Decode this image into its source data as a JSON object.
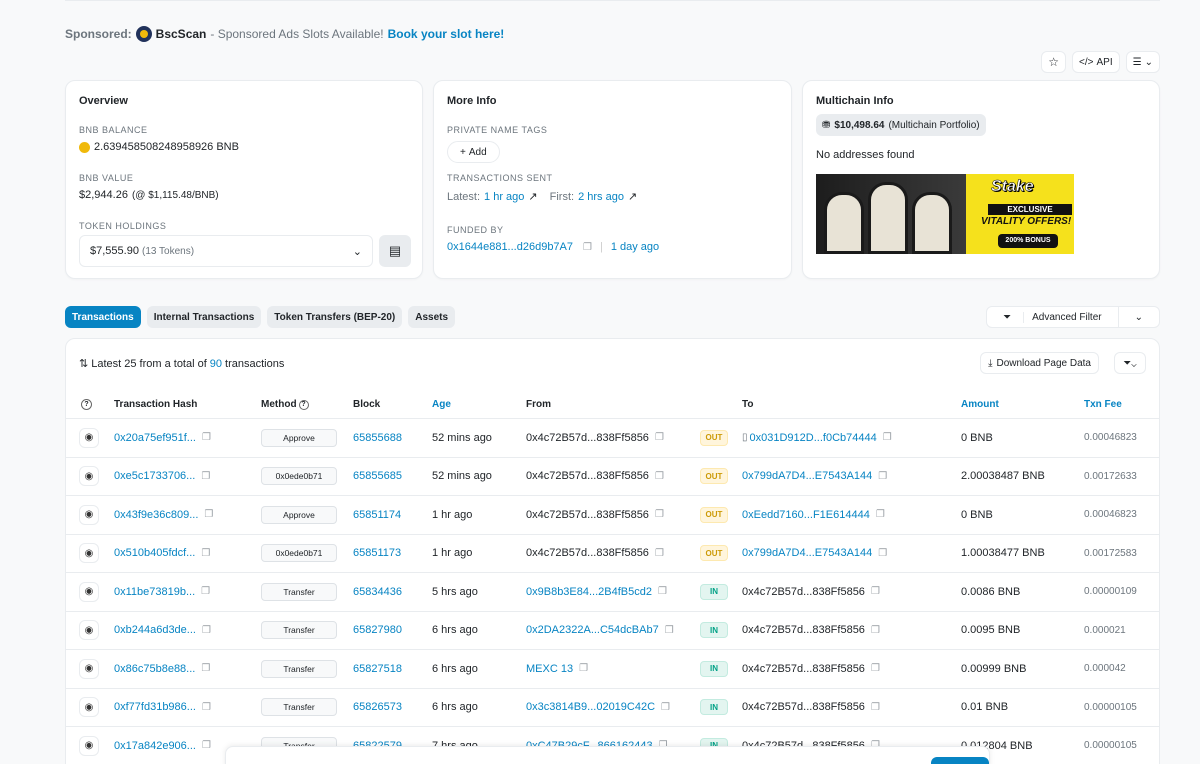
{
  "sponsor": {
    "prefix": "Sponsored:",
    "brand": "BscScan",
    "text": "- Sponsored Ads Slots Available!",
    "cta": "Book your slot here!"
  },
  "top_actions": {
    "api": "API"
  },
  "overview": {
    "title": "Overview",
    "balance_label": "BNB BALANCE",
    "balance": "2.639458508248958926 BNB",
    "value_label": "BNB VALUE",
    "value": "$2,944.26",
    "value_rate": "(@ $1,115.48/BNB)",
    "holdings_label": "TOKEN HOLDINGS",
    "holdings_value": "$7,555.90",
    "holdings_tokens": "(13 Tokens)"
  },
  "more_info": {
    "title": "More Info",
    "tags_label": "PRIVATE NAME TAGS",
    "add": "Add",
    "sent_label": "TRANSACTIONS SENT",
    "latest_label": "Latest:",
    "latest": "1 hr ago",
    "first_label": "First:",
    "first": "2 hrs ago",
    "funded_label": "FUNDED BY",
    "funded_addr": "0x1644e881...d26d9b7A7",
    "funded_age": "1 day ago"
  },
  "multichain": {
    "title": "Multichain Info",
    "portfolio_value": "$10,498.64",
    "portfolio_label": "(Multichain Portfolio)",
    "no_addresses": "No addresses found",
    "ad": {
      "logo": "Stake",
      "line1": "EXCLUSIVE",
      "line2": "VITALITY OFFERS!",
      "line3": "200% BONUS"
    }
  },
  "tabs": [
    "Transactions",
    "Internal Transactions",
    "Token Transfers (BEP-20)",
    "Assets"
  ],
  "advanced_filter": "Advanced Filter",
  "summary": {
    "prefix": "Latest 25 from a total of",
    "total": "90",
    "suffix": "transactions"
  },
  "download": "Download Page Data",
  "columns": {
    "hash": "Transaction Hash",
    "method": "Method",
    "block": "Block",
    "age": "Age",
    "from": "From",
    "to": "To",
    "amount": "Amount",
    "fee": "Txn Fee"
  },
  "rows": [
    {
      "hash": "0x20a75ef951f...",
      "method": "Approve",
      "block": "65855688",
      "age": "52 mins ago",
      "from": "0x4c72B57d...838Ff5856",
      "dir": "OUT",
      "to": "0x031D912D...f0Cb74444",
      "amount": "0 BNB",
      "fee": "0.00046823"
    },
    {
      "hash": "0xe5c1733706...",
      "method": "0x0ede0b71",
      "block": "65855685",
      "age": "52 mins ago",
      "from": "0x4c72B57d...838Ff5856",
      "dir": "OUT",
      "to": "0x799dA7D4...E7543A144",
      "amount": "2.00038487 BNB",
      "fee": "0.00172633"
    },
    {
      "hash": "0x43f9e36c809...",
      "method": "Approve",
      "block": "65851174",
      "age": "1 hr ago",
      "from": "0x4c72B57d...838Ff5856",
      "dir": "OUT",
      "to": "0xEedd7160...F1E614444",
      "amount": "0 BNB",
      "fee": "0.00046823"
    },
    {
      "hash": "0x510b405fdcf...",
      "method": "0x0ede0b71",
      "block": "65851173",
      "age": "1 hr ago",
      "from": "0x4c72B57d...838Ff5856",
      "dir": "OUT",
      "to": "0x799dA7D4...E7543A144",
      "amount": "1.00038477 BNB",
      "fee": "0.00172583"
    },
    {
      "hash": "0x11be73819b...",
      "method": "Transfer",
      "block": "65834436",
      "age": "5 hrs ago",
      "from": "0x9B8b3E84...2B4fB5cd2",
      "dir": "IN",
      "to": "0x4c72B57d...838Ff5856",
      "amount": "0.0086 BNB",
      "fee": "0.00000109"
    },
    {
      "hash": "0xb244a6d3de...",
      "method": "Transfer",
      "block": "65827980",
      "age": "6 hrs ago",
      "from": "0x2DA2322A...C54dcBAb7",
      "dir": "IN",
      "to": "0x4c72B57d...838Ff5856",
      "amount": "0.0095 BNB",
      "fee": "0.000021"
    },
    {
      "hash": "0x86c75b8e88...",
      "method": "Transfer",
      "block": "65827518",
      "age": "6 hrs ago",
      "from": "MEXC 13",
      "dir": "IN",
      "to": "0x4c72B57d...838Ff5856",
      "amount": "0.00999 BNB",
      "fee": "0.000042"
    },
    {
      "hash": "0xf77fd31b986...",
      "method": "Transfer",
      "block": "65826573",
      "age": "6 hrs ago",
      "from": "0x3c3814B9...02019C42C",
      "dir": "IN",
      "to": "0x4c72B57d...838Ff5856",
      "amount": "0.01 BNB",
      "fee": "0.00000105"
    },
    {
      "hash": "0x17a842e906...",
      "method": "Transfer",
      "block": "65822579",
      "age": "7 hrs ago",
      "from": "0xC47B29cF...866162443",
      "dir": "IN",
      "to": "0x4c72B57d...838Ff5856",
      "amount": "0.012804 BNB",
      "fee": "0.00000105"
    }
  ]
}
